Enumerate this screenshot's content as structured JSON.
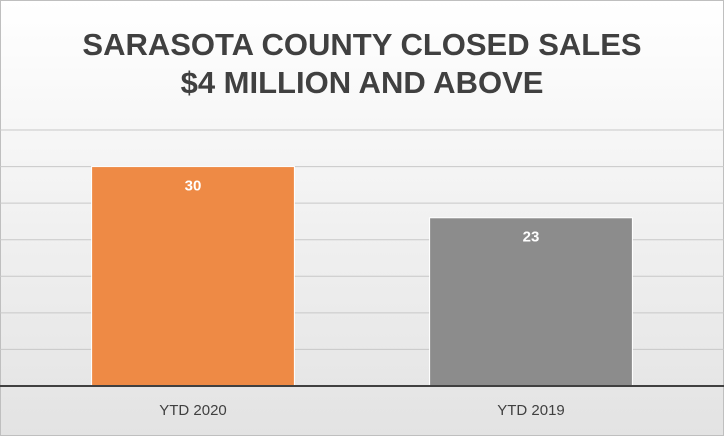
{
  "chart_data": {
    "type": "bar",
    "title": [
      "SARASOTA COUNTY CLOSED SALES",
      "$4 MILLION AND ABOVE"
    ],
    "categories": [
      "YTD 2020",
      "YTD 2019"
    ],
    "values": [
      30,
      23
    ],
    "colors": [
      "#ee8a45",
      "#8c8c8c"
    ],
    "ylim": [
      0,
      35
    ],
    "yticks": [
      0,
      5,
      10,
      15,
      20,
      25,
      30,
      35
    ],
    "grid": true
  }
}
